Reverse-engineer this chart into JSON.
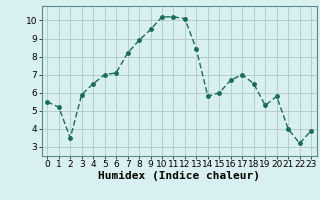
{
  "x": [
    0,
    1,
    2,
    3,
    4,
    5,
    6,
    7,
    8,
    9,
    10,
    11,
    12,
    13,
    14,
    15,
    16,
    17,
    18,
    19,
    20,
    21,
    22,
    23
  ],
  "y": [
    5.5,
    5.2,
    3.5,
    5.9,
    6.5,
    7.0,
    7.1,
    8.2,
    8.9,
    9.5,
    10.2,
    10.2,
    10.1,
    8.4,
    5.8,
    6.0,
    6.7,
    7.0,
    6.5,
    5.3,
    5.8,
    4.0,
    3.2,
    3.9
  ],
  "line_color": "#1a6b5e",
  "bg_color": "#d8f0f0",
  "grid_color": "#b0c8c8",
  "xlabel": "Humidex (Indice chaleur)",
  "xlim": [
    -0.5,
    23.5
  ],
  "ylim": [
    2.5,
    10.8
  ],
  "yticks": [
    3,
    4,
    5,
    6,
    7,
    8,
    9,
    10
  ],
  "xticks": [
    0,
    1,
    2,
    3,
    4,
    5,
    6,
    7,
    8,
    9,
    10,
    11,
    12,
    13,
    14,
    15,
    16,
    17,
    18,
    19,
    20,
    21,
    22,
    23
  ],
  "marker": "o",
  "marker_size": 2.5,
  "line_width": 1.0,
  "xlabel_fontsize": 8,
  "tick_fontsize": 6.5
}
